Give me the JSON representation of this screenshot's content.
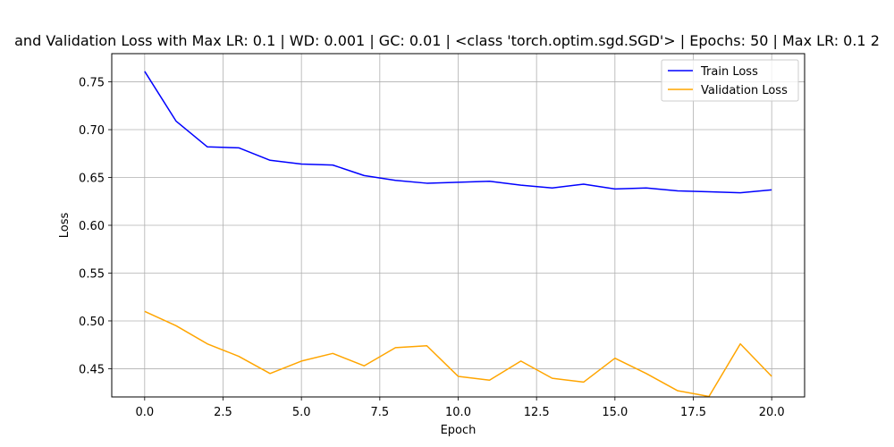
{
  "chart_data": {
    "type": "line",
    "title": "and Validation Loss with Max LR: 0.1 | WD: 0.001 | GC: 0.01 | <class 'torch.optim.sgd.SGD'> | Epochs: 50 | Max LR: 0.1 2",
    "xlabel": "Epoch",
    "ylabel": "Loss",
    "xlim": [
      -1.05,
      21.05
    ],
    "ylim": [
      0.4205,
      0.7795
    ],
    "xticks": [
      "0.0",
      "2.5",
      "5.0",
      "7.5",
      "10.0",
      "12.5",
      "15.0",
      "17.5",
      "20.0"
    ],
    "yticks": [
      "0.45",
      "0.50",
      "0.55",
      "0.60",
      "0.65",
      "0.70",
      "0.75"
    ],
    "grid": true,
    "legend_position": "top-right",
    "x": [
      0,
      1,
      2,
      3,
      4,
      5,
      6,
      7,
      8,
      9,
      10,
      11,
      12,
      13,
      14,
      15,
      16,
      17,
      18,
      19,
      20
    ],
    "series": [
      {
        "name": "Train Loss",
        "color": "#0000ff",
        "values": [
          0.761,
          0.709,
          0.682,
          0.681,
          0.668,
          0.664,
          0.663,
          0.652,
          0.647,
          0.644,
          0.645,
          0.646,
          0.642,
          0.639,
          0.643,
          0.638,
          0.639,
          0.636,
          0.635,
          0.634,
          0.637
        ]
      },
      {
        "name": "Validation Loss",
        "color": "#ffa500",
        "values": [
          0.51,
          0.495,
          0.476,
          0.463,
          0.445,
          0.458,
          0.466,
          0.453,
          0.472,
          0.474,
          0.442,
          0.438,
          0.458,
          0.44,
          0.436,
          0.461,
          0.445,
          0.427,
          0.421,
          0.476,
          0.442
        ]
      }
    ]
  }
}
